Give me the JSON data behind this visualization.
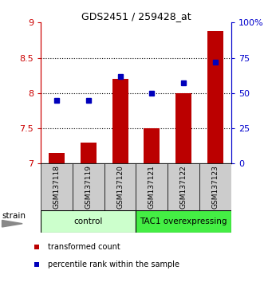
{
  "title": "GDS2451 / 259428_at",
  "samples": [
    "GSM137118",
    "GSM137119",
    "GSM137120",
    "GSM137121",
    "GSM137122",
    "GSM137123"
  ],
  "red_values": [
    7.15,
    7.3,
    8.2,
    7.5,
    8.0,
    8.88
  ],
  "blue_values": [
    45,
    45,
    62,
    50,
    57,
    72
  ],
  "ylim_left": [
    7,
    9
  ],
  "ylim_right": [
    0,
    100
  ],
  "yticks_left": [
    7,
    7.5,
    8,
    8.5,
    9
  ],
  "ytick_labels_left": [
    "7",
    "7.5",
    "8",
    "8.5",
    "9"
  ],
  "yticks_right": [
    0,
    25,
    50,
    75,
    100
  ],
  "ytick_labels_right": [
    "0",
    "25",
    "50",
    "75",
    "100%"
  ],
  "grid_lines": [
    7.5,
    8.0,
    8.5
  ],
  "bar_color": "#bb0000",
  "dot_color": "#0000bb",
  "groups": [
    {
      "label": "control",
      "indices": [
        0,
        1,
        2
      ],
      "facecolor": "#ccffcc",
      "edgecolor": "#000000"
    },
    {
      "label": "TAC1 overexpressing",
      "indices": [
        3,
        4,
        5
      ],
      "facecolor": "#44ee44",
      "edgecolor": "#000000"
    }
  ],
  "strain_label": "strain",
  "legend_items": [
    {
      "color": "#bb0000",
      "label": "transformed count"
    },
    {
      "color": "#0000bb",
      "label": "percentile rank within the sample"
    }
  ],
  "left_axis_color": "#cc0000",
  "right_axis_color": "#0000cc",
  "xtick_bg": "#cccccc",
  "bar_width": 0.5
}
